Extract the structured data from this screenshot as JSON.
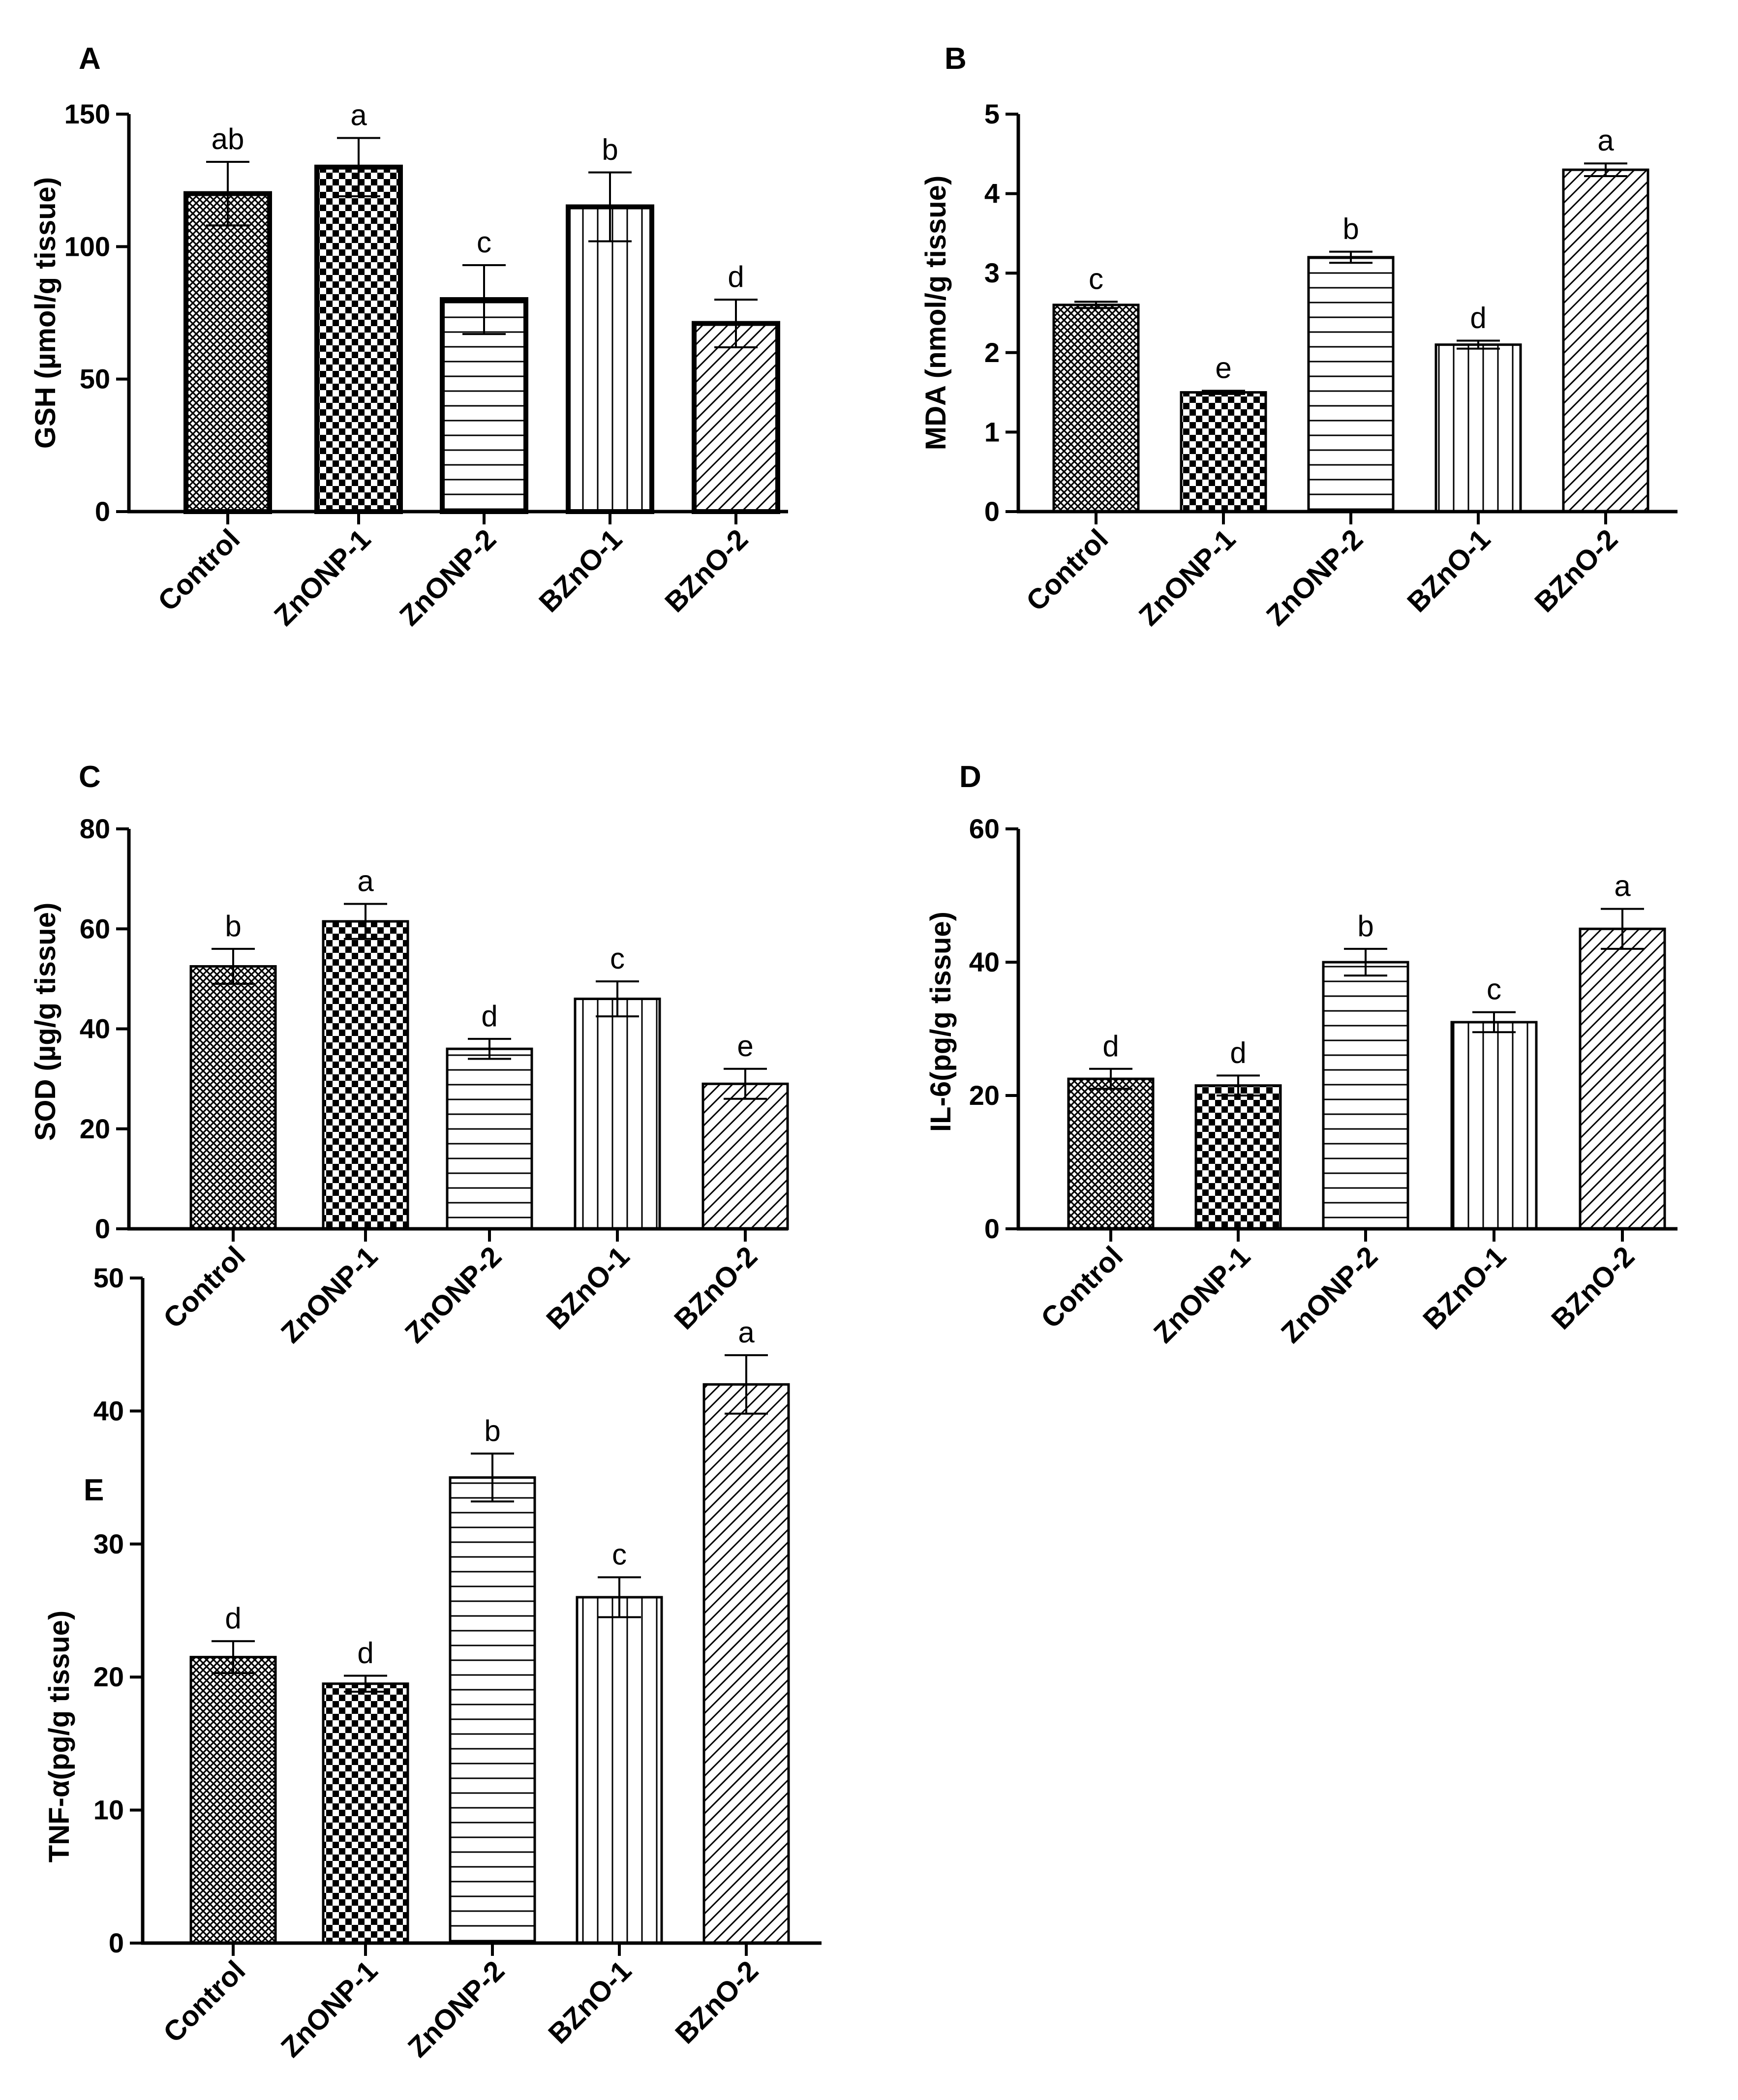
{
  "figure": {
    "categories": [
      "Control",
      "ZnONP-1",
      "ZnONP-2",
      "BZnO-1",
      "BZnO-2"
    ],
    "patterns": [
      "crosshatch",
      "checker",
      "hlines",
      "vlines",
      "diagonal"
    ],
    "colors": {
      "ink": "#000000",
      "background": "#ffffff"
    }
  },
  "chart_data": [
    {
      "panel": "A",
      "type": "bar",
      "ylabel": "GSH (µmol/g tissue)",
      "ylim": [
        0,
        150
      ],
      "yticks": [
        0,
        50,
        100,
        150
      ],
      "categories": [
        "Control",
        "ZnONP-1",
        "ZnONP-2",
        "BZnO-1",
        "BZnO-2"
      ],
      "values": [
        120,
        130,
        80,
        115,
        71
      ],
      "errors": [
        12,
        11,
        13,
        13,
        9
      ],
      "significance": [
        "ab",
        "a",
        "c",
        "b",
        "d"
      ]
    },
    {
      "panel": "B",
      "type": "bar",
      "ylabel": "MDA (nmol/g tissue)",
      "ylim": [
        0,
        5
      ],
      "yticks": [
        0,
        1,
        2,
        3,
        4,
        5
      ],
      "categories": [
        "Control",
        "ZnONP-1",
        "ZnONP-2",
        "BZnO-1",
        "BZnO-2"
      ],
      "values": [
        2.6,
        1.5,
        3.2,
        2.1,
        4.3
      ],
      "errors": [
        0.04,
        0.02,
        0.07,
        0.05,
        0.08
      ],
      "significance": [
        "c",
        "e",
        "b",
        "d",
        "a"
      ]
    },
    {
      "panel": "C",
      "type": "bar",
      "ylabel": "SOD (µg/g tissue)",
      "ylim": [
        0,
        80
      ],
      "yticks": [
        0,
        20,
        40,
        60,
        80
      ],
      "categories": [
        "Control",
        "ZnONP-1",
        "ZnONP-2",
        "BZnO-1",
        "BZnO-2"
      ],
      "values": [
        52.5,
        61.5,
        36,
        46,
        29
      ],
      "errors": [
        3.5,
        3.5,
        2,
        3.5,
        3
      ],
      "significance": [
        "b",
        "a",
        "d",
        "c",
        "e"
      ]
    },
    {
      "panel": "D",
      "type": "bar",
      "ylabel": "IL-6(pg/g tissue)",
      "ylim": [
        0,
        60
      ],
      "yticks": [
        0,
        20,
        40,
        60
      ],
      "categories": [
        "Control",
        "ZnONP-1",
        "ZnONP-2",
        "BZnO-1",
        "BZnO-2"
      ],
      "values": [
        22.5,
        21.5,
        40,
        31,
        45
      ],
      "errors": [
        1.5,
        1.5,
        2,
        1.5,
        3
      ],
      "significance": [
        "d",
        "d",
        "b",
        "c",
        "a"
      ]
    },
    {
      "panel": "E",
      "type": "bar",
      "ylabel": "TNF-α(pg/g tissue)",
      "ylim": [
        0,
        50
      ],
      "yticks": [
        0,
        10,
        20,
        30,
        40,
        50
      ],
      "categories": [
        "Control",
        "ZnONP-1",
        "ZnONP-2",
        "BZnO-1",
        "BZnO-2"
      ],
      "values": [
        21.5,
        19.5,
        35,
        26,
        42
      ],
      "errors": [
        1.2,
        0.6,
        1.8,
        1.5,
        2.2
      ],
      "significance": [
        "d",
        "d",
        "b",
        "c",
        "a"
      ]
    }
  ]
}
